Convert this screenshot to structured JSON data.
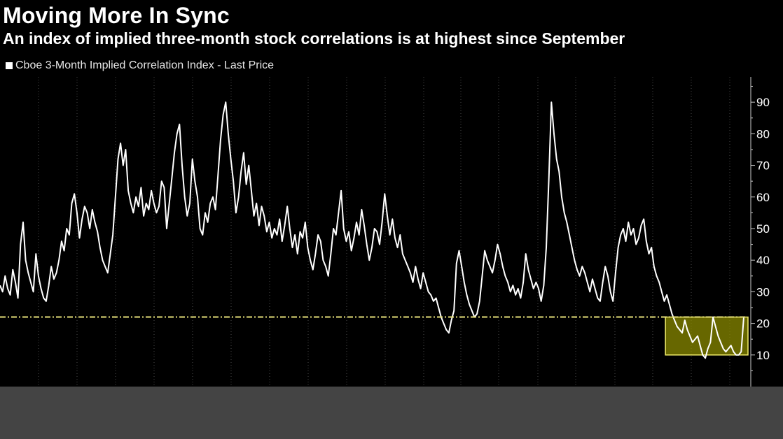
{
  "title": "Moving More In Sync",
  "subtitle": "An index of implied three-month stock correlations is at highest since September",
  "legend": {
    "label": "Cboe 3-Month Implied Correlation Index - Last Price",
    "swatch_color": "#ffffff"
  },
  "colors": {
    "background": "#000000",
    "line": "#ffffff",
    "grid": "#4a4a4a",
    "reference_line": "#e8e27a",
    "highlight_fill": "#8a8a00",
    "highlight_border": "#f2ee6a",
    "bottom_band": "#444444"
  },
  "chart_data": {
    "type": "line",
    "title": "Moving More In Sync",
    "subtitle": "An index of implied three-month stock correlations is at highest since September",
    "series": [
      {
        "name": "Cboe 3-Month Implied Correlation Index - Last Price",
        "values": [
          32,
          30,
          35,
          31,
          29,
          37,
          33,
          28,
          45,
          52,
          40,
          36,
          33,
          30,
          42,
          35,
          31,
          28,
          27,
          32,
          38,
          34,
          36,
          40,
          46,
          43,
          50,
          48,
          58,
          61,
          55,
          47,
          53,
          57,
          55,
          50,
          56,
          52,
          49,
          44,
          40,
          38,
          36,
          42,
          48,
          60,
          72,
          77,
          70,
          75,
          62,
          58,
          55,
          60,
          57,
          63,
          54,
          58,
          56,
          62,
          58,
          55,
          57,
          65,
          63,
          50,
          58,
          66,
          74,
          80,
          83,
          70,
          60,
          54,
          58,
          72,
          65,
          60,
          50,
          48,
          55,
          52,
          58,
          60,
          56,
          67,
          78,
          86,
          90,
          80,
          72,
          65,
          55,
          60,
          68,
          74,
          64,
          70,
          62,
          54,
          58,
          51,
          57,
          54,
          49,
          52,
          47,
          50,
          48,
          53,
          46,
          51,
          57,
          50,
          44,
          48,
          42,
          49,
          47,
          52,
          44,
          40,
          37,
          42,
          48,
          46,
          40,
          38,
          35,
          42,
          50,
          48,
          55,
          62,
          50,
          46,
          49,
          43,
          47,
          52,
          48,
          56,
          51,
          45,
          40,
          44,
          50,
          49,
          45,
          52,
          61,
          54,
          48,
          53,
          47,
          44,
          48,
          42,
          40,
          38,
          36,
          33,
          38,
          34,
          31,
          36,
          33,
          30,
          29,
          27,
          28,
          25,
          22,
          20,
          18,
          17,
          21,
          24,
          39,
          43,
          38,
          33,
          29,
          26,
          24,
          22,
          23,
          27,
          35,
          43,
          40,
          38,
          36,
          40,
          45,
          42,
          38,
          35,
          33,
          30,
          32,
          29,
          31,
          28,
          33,
          42,
          37,
          34,
          31,
          33,
          31,
          27,
          32,
          44,
          66,
          90,
          80,
          72,
          68,
          60,
          55,
          52,
          48,
          44,
          40,
          37,
          35,
          38,
          36,
          33,
          30,
          34,
          31,
          28,
          27,
          33,
          38,
          35,
          30,
          27,
          36,
          44,
          48,
          50,
          46,
          52,
          48,
          50,
          45,
          47,
          51,
          53,
          46,
          42,
          44,
          38,
          35,
          33,
          30,
          27,
          29,
          26,
          23,
          21,
          19,
          18,
          17,
          21,
          18,
          16,
          14,
          15,
          16,
          13,
          10,
          9,
          12,
          14,
          22,
          19,
          16,
          14,
          12,
          11,
          12,
          13,
          11,
          10,
          10,
          11,
          22
        ]
      }
    ],
    "ylim": [
      0,
      98
    ],
    "yticks": [
      10,
      20,
      30,
      40,
      50,
      60,
      70,
      80,
      90
    ],
    "ytick_labels": [
      "10",
      "20",
      "30",
      "40",
      "50",
      "60",
      "70",
      "80",
      "90"
    ],
    "reference_line": {
      "y": 22,
      "style": "dash-dot"
    },
    "highlight_range": {
      "start_index": 260,
      "end_index": 264,
      "ymin": 10,
      "ymax": 22
    },
    "grid": true,
    "axis_position": "right",
    "legend_position": "top-left",
    "xlabel": "",
    "ylabel": ""
  }
}
